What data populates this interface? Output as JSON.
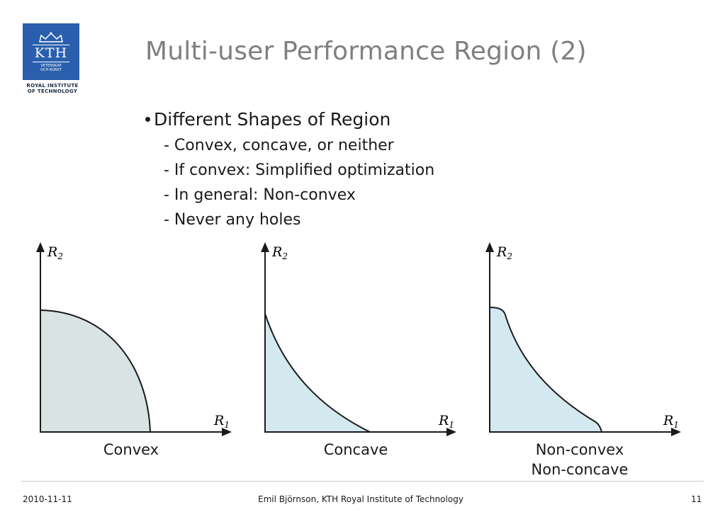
{
  "logo": {
    "mark_text": "KTH",
    "motto_line1": "VETENSKAP",
    "motto_line2": "OCH KONST",
    "caption_line1": "ROYAL INSTITUTE",
    "caption_line2": "OF TECHNOLOGY"
  },
  "title": "Multi-user Performance Region (2)",
  "bullets": {
    "main": "Different Shapes of Region",
    "subitems": [
      "- Convex, concave, or neither",
      "- If convex: Simplified optimization",
      "- In general: Non-convex",
      "- Never any holes"
    ]
  },
  "diagrams": [
    {
      "x_label": "R",
      "x_sub": "1",
      "y_label": "R",
      "y_sub": "2",
      "caption_line1": "Convex",
      "caption_line2": "",
      "fill_color": "#d8e4e4"
    },
    {
      "x_label": "R",
      "x_sub": "1",
      "y_label": "R",
      "y_sub": "2",
      "caption_line1": "Concave",
      "caption_line2": "",
      "fill_color": "#d4e8ef"
    },
    {
      "x_label": "R",
      "x_sub": "1",
      "y_label": "R",
      "y_sub": "2",
      "caption_line1": "Non-convex",
      "caption_line2": "Non-concave",
      "fill_color": "#d4e8ef"
    }
  ],
  "footer": {
    "date": "2010-11-11",
    "author": "Emil Björnson, KTH Royal Institute of Technology",
    "page": "11"
  },
  "colors": {
    "title": "#7f7f7f",
    "logo_blue": "#2a5fad",
    "divider": "#c8c8c8"
  }
}
